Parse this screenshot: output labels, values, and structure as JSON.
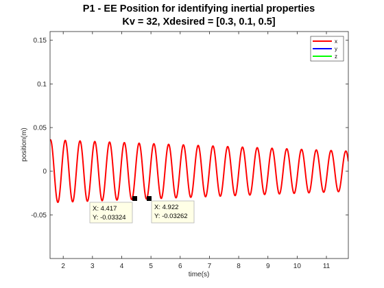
{
  "chart_data": {
    "type": "line",
    "title": "P1 - EE Position for identifying inertial properties",
    "subtitle": "Kv = 32, Xdesired = [0.3, 0.1, 0.5]",
    "xlabel": "time(s)",
    "ylabel": "position(m)",
    "xlim": [
      1.55,
      11.75
    ],
    "ylim": [
      -0.1,
      0.16
    ],
    "xticks": [
      2,
      3,
      4,
      5,
      6,
      7,
      8,
      9,
      10,
      11
    ],
    "yticks": [
      -0.05,
      0,
      0.05,
      0.1,
      0.15
    ],
    "ytick_labels": [
      "-0.05",
      "0",
      "0.05",
      "0.1",
      "0.15"
    ],
    "grid": false,
    "legend_position": "top-right",
    "series": [
      {
        "name": "x",
        "color": "#ff0000",
        "model": {
          "type": "damped-sine",
          "offset": 0,
          "amp_start": 0.036,
          "amp_end": 0.023,
          "period": 0.505,
          "phase_peak_at": 1.565,
          "t_start": 1.55,
          "t_end": 11.75
        }
      },
      {
        "name": "y",
        "color": "#0000ff"
      },
      {
        "name": "z",
        "color": "#00ff00"
      }
    ],
    "annotations": [
      {
        "x": 4.417,
        "y": -0.03324,
        "x_label": "X: 4.417",
        "y_label": "Y: -0.03324"
      },
      {
        "x": 4.922,
        "y": -0.03262,
        "x_label": "X: 4.922",
        "y_label": "Y: -0.03262"
      }
    ]
  }
}
